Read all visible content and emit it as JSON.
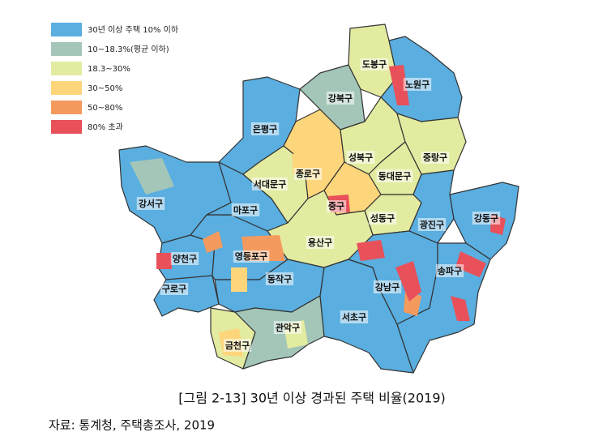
{
  "legend": [
    {
      "label": "30년 이상 주택 10% 이하",
      "color": "#5aaee0"
    },
    {
      "label": "10~18.3%(평균 이하)",
      "color": "#a3c6b8"
    },
    {
      "label": "18.3~30%",
      "color": "#e3eba0"
    },
    {
      "label": "30~50%",
      "color": "#fdd57a"
    },
    {
      "label": "50~80%",
      "color": "#f59a5e"
    },
    {
      "label": "80% 초과",
      "color": "#e8515a"
    }
  ],
  "districts": [
    {
      "name": "도봉구"
    },
    {
      "name": "노원구"
    },
    {
      "name": "강북구"
    },
    {
      "name": "은평구"
    },
    {
      "name": "성북구"
    },
    {
      "name": "중랑구"
    },
    {
      "name": "종로구"
    },
    {
      "name": "동대문구"
    },
    {
      "name": "서대문구"
    },
    {
      "name": "강서구"
    },
    {
      "name": "마포구"
    },
    {
      "name": "중구"
    },
    {
      "name": "성동구"
    },
    {
      "name": "광진구"
    },
    {
      "name": "강동구"
    },
    {
      "name": "용산구"
    },
    {
      "name": "영등포구"
    },
    {
      "name": "양천구"
    },
    {
      "name": "송파구"
    },
    {
      "name": "동작구"
    },
    {
      "name": "강남구"
    },
    {
      "name": "구로구"
    },
    {
      "name": "서초구"
    },
    {
      "name": "관악구"
    },
    {
      "name": "금천구"
    }
  ],
  "caption": "[그림 2-13] 30년 이상 경과된 주택 비율(2019)",
  "source": "자료: 통계청, 주택총조사, 2019"
}
